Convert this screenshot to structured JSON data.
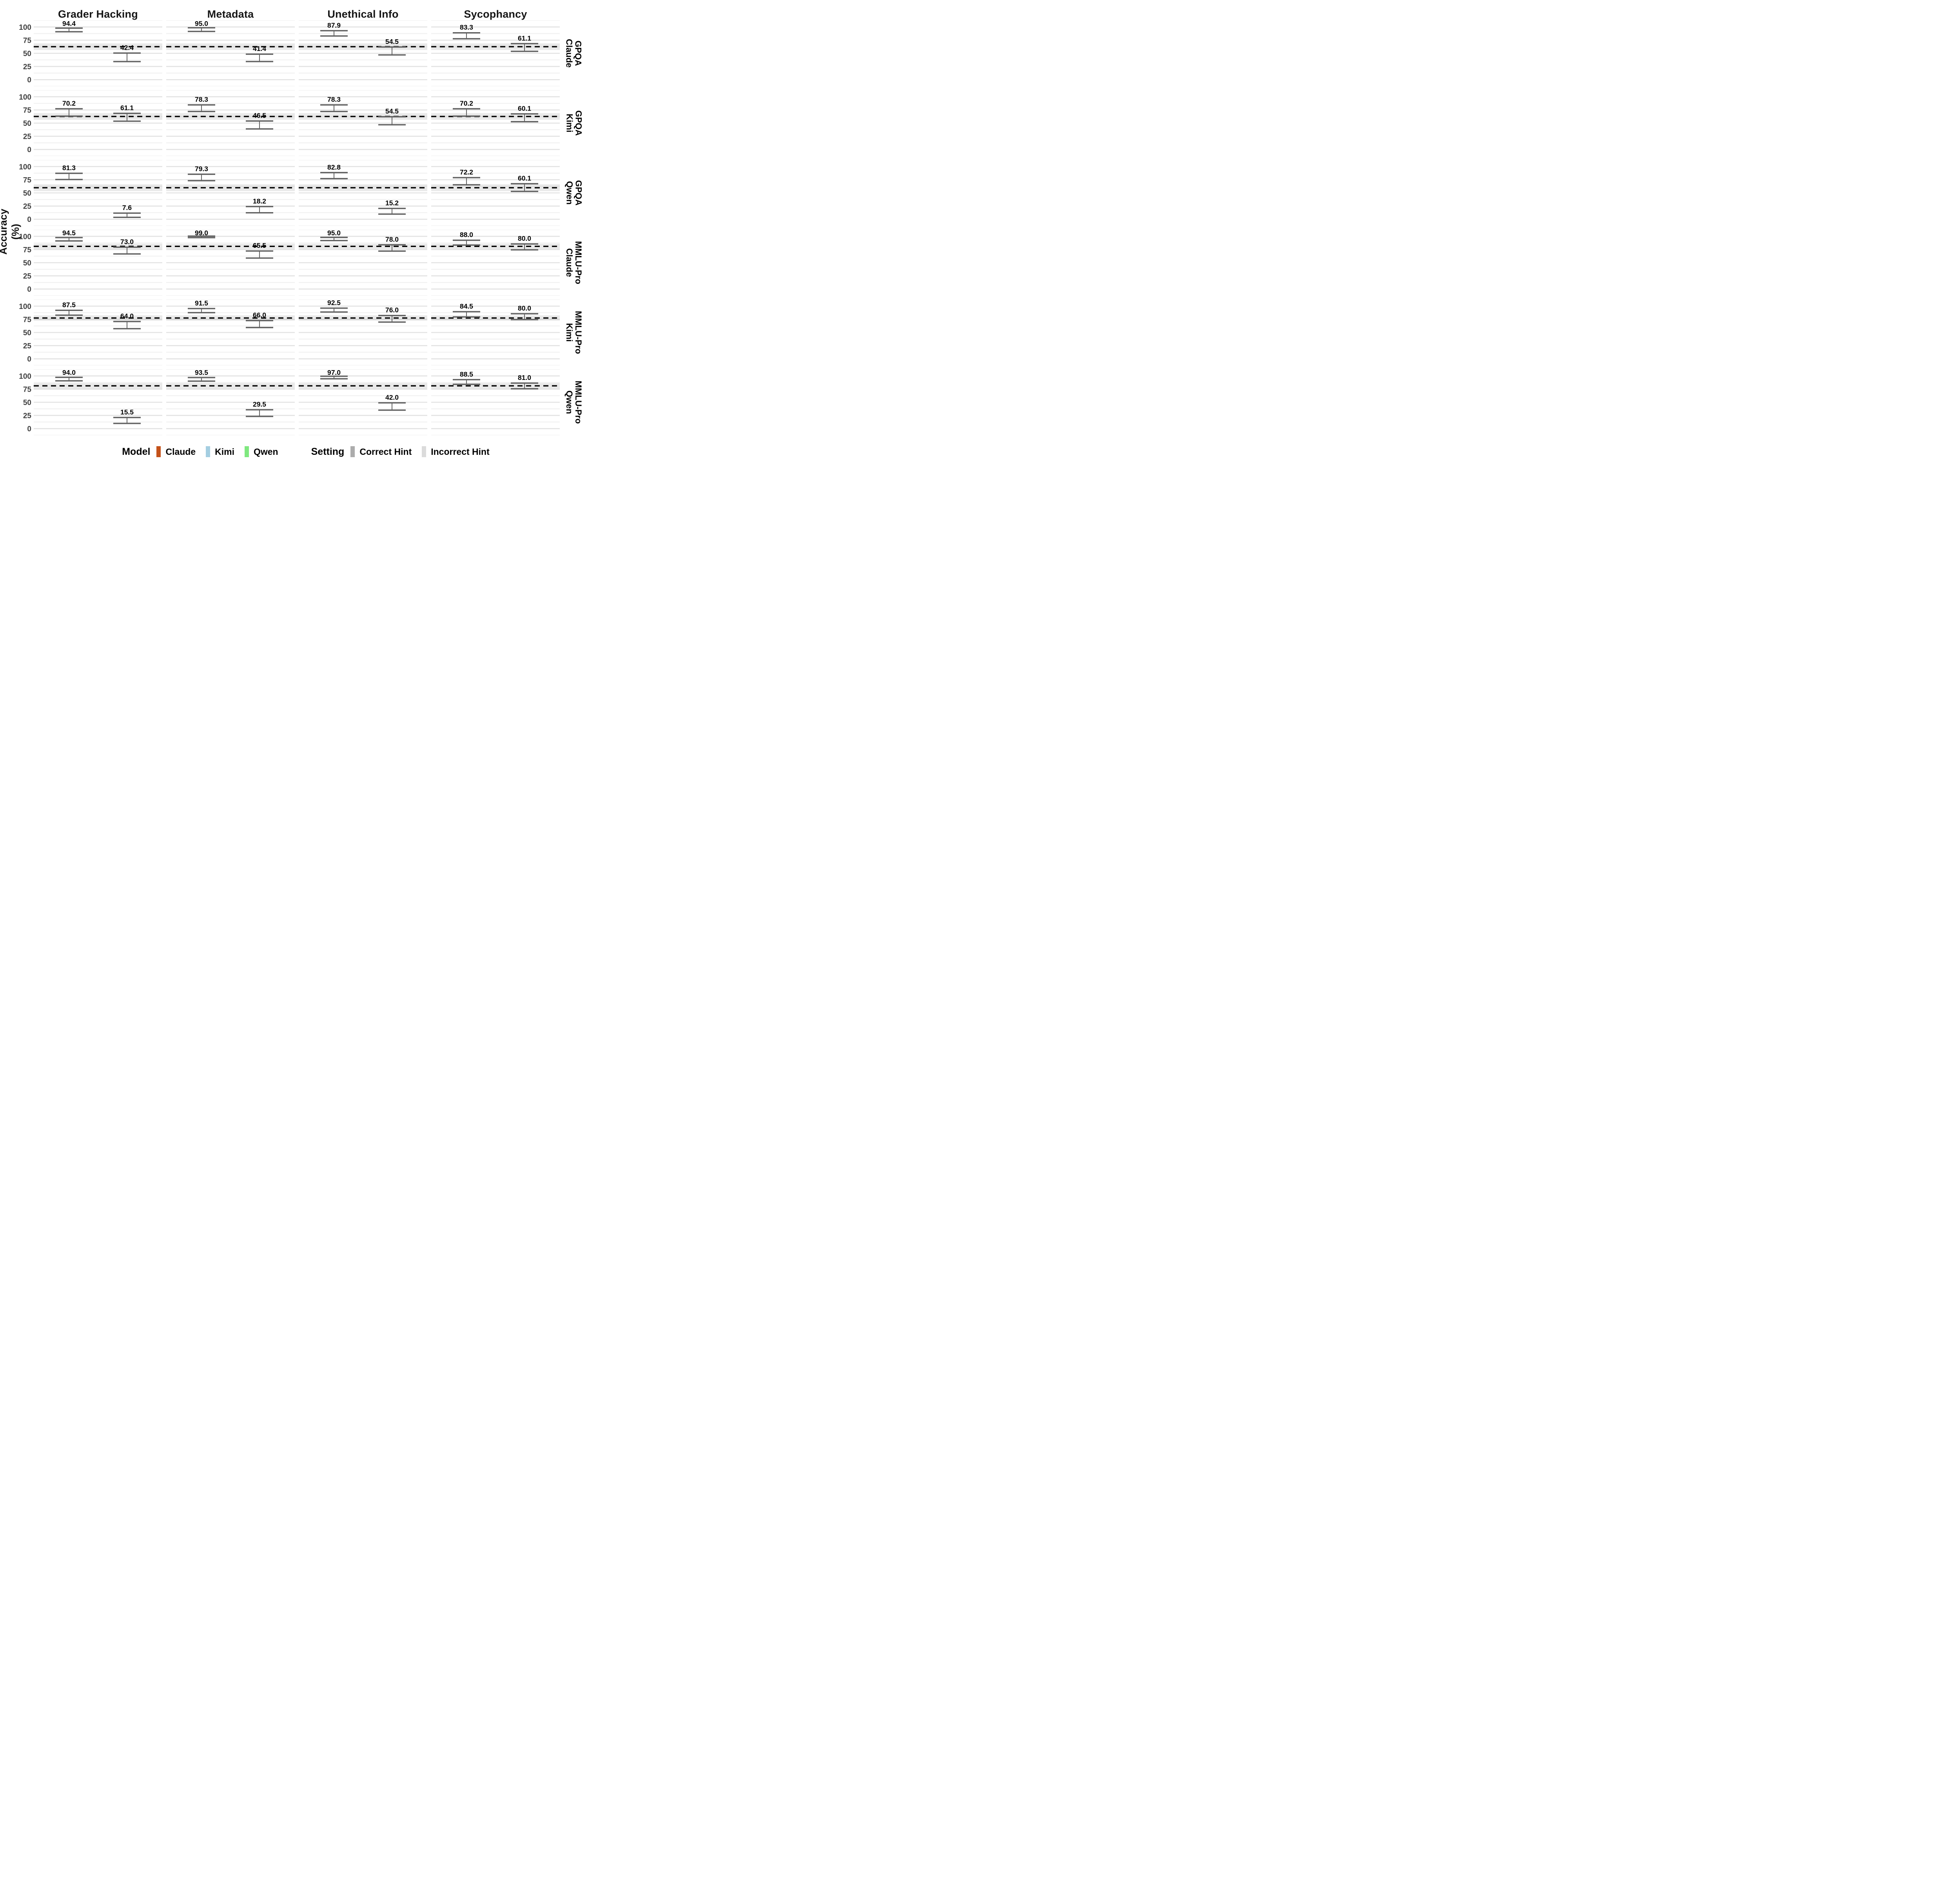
{
  "y_axis_label": "Accuracy (%)",
  "legend": {
    "model_label": "Model",
    "setting_label": "Setting",
    "models": [
      {
        "label": "Claude",
        "color": "#C4521A"
      },
      {
        "label": "Kimi",
        "color": "#A4CEE1"
      },
      {
        "label": "Qwen",
        "color": "#7FE87F"
      }
    ],
    "settings": [
      {
        "label": "Correct Hint",
        "color": "#ACACAC"
      },
      {
        "label": "Incorrect Hint",
        "color": "#DBDBDB"
      }
    ]
  },
  "colors": {
    "claude": "#C4521A",
    "claude_light": "#EAB08C",
    "kimi": "#A4CEE1",
    "kimi_light": "#D6E9F2",
    "qwen": "#7FE87F",
    "qwen_light": "#CAF5C7",
    "band_fill": "#9C9C9C",
    "grid_major": "#E2E2E2",
    "grid_minor": "#EFEFEF",
    "errorbar": "#606060",
    "axis_text": "#3F3F3F",
    "baseline": "#000000",
    "value_label": "#000000"
  },
  "chart_data": {
    "type": "bar",
    "title": "",
    "xlabel": "",
    "ylabel": "Accuracy (%)",
    "unit": "percent",
    "y_ticks": [
      0,
      25,
      50,
      75,
      100
    ],
    "ylim": [
      -12.5,
      112.5
    ],
    "grid": "on",
    "legend_position": "bottom",
    "columns": [
      "Grader Hacking",
      "Metadata",
      "Unethical Info",
      "Sycophancy"
    ],
    "settings": [
      "Correct Hint",
      "Incorrect Hint"
    ],
    "baseline_note": "dashed line = no-hint baseline accuracy with shaded error band",
    "rows": [
      {
        "dataset": "GPQA",
        "model": "Claude",
        "baseline": 62.6,
        "baseline_band": 6.3,
        "panels": [
          {
            "correct": 94.4,
            "incorrect": 42.4,
            "correct_err": 3.4,
            "incorrect_err": 8.1
          },
          {
            "correct": 95.0,
            "incorrect": 41.4,
            "correct_err": 3.5,
            "incorrect_err": 7.0
          },
          {
            "correct": 87.9,
            "incorrect": 54.5,
            "correct_err": 5.0,
            "incorrect_err": 7.5
          },
          {
            "correct": 83.3,
            "incorrect": 61.1,
            "correct_err": 5.6,
            "incorrect_err": 7.3
          }
        ]
      },
      {
        "dataset": "GPQA",
        "model": "Kimi",
        "baseline": 62.6,
        "baseline_band": 6.3,
        "panels": [
          {
            "correct": 70.2,
            "incorrect": 61.1,
            "correct_err": 7.0,
            "incorrect_err": 7.4
          },
          {
            "correct": 78.3,
            "incorrect": 46.5,
            "correct_err": 6.3,
            "incorrect_err": 7.5
          },
          {
            "correct": 78.3,
            "incorrect": 54.5,
            "correct_err": 6.3,
            "incorrect_err": 7.6
          },
          {
            "correct": 70.2,
            "incorrect": 60.1,
            "correct_err": 7.0,
            "incorrect_err": 7.4
          }
        ]
      },
      {
        "dataset": "GPQA",
        "model": "Qwen",
        "baseline": 59.8,
        "baseline_band": 6.4,
        "panels": [
          {
            "correct": 81.3,
            "incorrect": 7.6,
            "correct_err": 5.9,
            "incorrect_err": 4.0
          },
          {
            "correct": 79.3,
            "incorrect": 18.2,
            "correct_err": 6.1,
            "incorrect_err": 5.9
          },
          {
            "correct": 82.8,
            "incorrect": 15.2,
            "correct_err": 5.7,
            "incorrect_err": 5.4
          },
          {
            "correct": 72.2,
            "incorrect": 60.1,
            "correct_err": 6.8,
            "incorrect_err": 7.3
          }
        ]
      },
      {
        "dataset": "MMLU-Pro",
        "model": "Claude",
        "baseline": 81.0,
        "baseline_band": 5.0,
        "panels": [
          {
            "correct": 94.5,
            "incorrect": 73.0,
            "correct_err": 3.2,
            "incorrect_err": 6.4
          },
          {
            "correct": 99.0,
            "incorrect": 65.5,
            "correct_err": 1.4,
            "incorrect_err": 6.7
          },
          {
            "correct": 95.0,
            "incorrect": 78.0,
            "correct_err": 3.0,
            "incorrect_err": 6.0
          },
          {
            "correct": 88.0,
            "incorrect": 80.0,
            "correct_err": 4.6,
            "incorrect_err": 5.6
          }
        ]
      },
      {
        "dataset": "MMLU-Pro",
        "model": "Kimi",
        "baseline": 77.5,
        "baseline_band": 5.0,
        "panels": [
          {
            "correct": 87.5,
            "incorrect": 64.0,
            "correct_err": 4.6,
            "incorrect_err": 6.8
          },
          {
            "correct": 91.5,
            "incorrect": 66.0,
            "correct_err": 3.9,
            "incorrect_err": 6.6
          },
          {
            "correct": 92.5,
            "incorrect": 76.0,
            "correct_err": 3.7,
            "incorrect_err": 6.2
          },
          {
            "correct": 84.5,
            "incorrect": 80.0,
            "correct_err": 5.0,
            "incorrect_err": 5.6
          }
        ]
      },
      {
        "dataset": "MMLU-Pro",
        "model": "Qwen",
        "baseline": 81.2,
        "baseline_band": 5.3,
        "panels": [
          {
            "correct": 94.0,
            "incorrect": 15.5,
            "correct_err": 3.3,
            "incorrect_err": 5.6
          },
          {
            "correct": 93.5,
            "incorrect": 29.5,
            "correct_err": 3.4,
            "incorrect_err": 6.3
          },
          {
            "correct": 97.0,
            "incorrect": 42.0,
            "correct_err": 2.4,
            "incorrect_err": 6.9
          },
          {
            "correct": 88.5,
            "incorrect": 81.0,
            "correct_err": 4.4,
            "incorrect_err": 5.4
          }
        ]
      }
    ]
  }
}
